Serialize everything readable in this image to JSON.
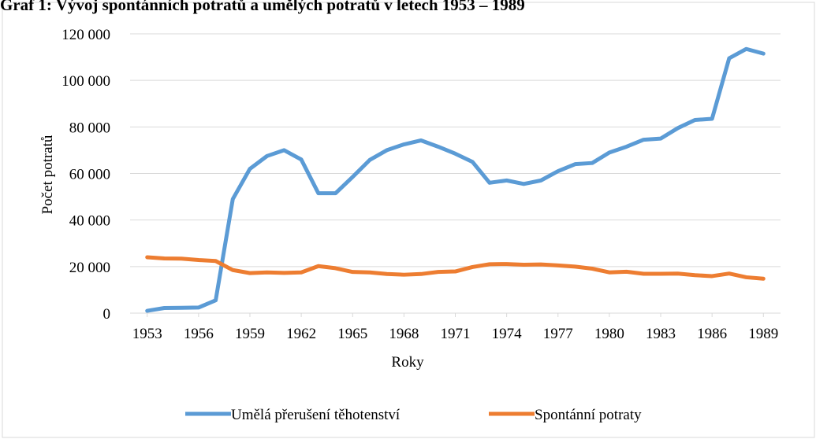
{
  "chart_data": {
    "type": "line",
    "title": "Graf 1: Vývoj spontánních potratů a umělých potratů v letech 1953 – 1989",
    "x_label": "Roky",
    "y_label": "Počet potratů",
    "x": [
      1953,
      1954,
      1955,
      1956,
      1957,
      1958,
      1959,
      1960,
      1961,
      1962,
      1963,
      1964,
      1965,
      1966,
      1967,
      1968,
      1969,
      1970,
      1971,
      1972,
      1973,
      1974,
      1975,
      1976,
      1977,
      1978,
      1979,
      1980,
      1981,
      1982,
      1983,
      1984,
      1985,
      1986,
      1987,
      1988,
      1989
    ],
    "series": [
      {
        "name": "Umělá přerušení těhotenství",
        "color": "#5b9bd5",
        "values": [
          1000,
          2200,
          2300,
          2400,
          5500,
          49000,
          62000,
          67500,
          70000,
          66000,
          51500,
          51500,
          58500,
          65800,
          70000,
          72500,
          74200,
          71500,
          68500,
          65000,
          56000,
          57000,
          55500,
          57000,
          61000,
          64000,
          64500,
          69000,
          71500,
          74500,
          75000,
          79500,
          83000,
          83500,
          109500,
          113500,
          111500
        ]
      },
      {
        "name": "Spontánní potraty",
        "color": "#ed7d31",
        "values": [
          24000,
          23500,
          23400,
          22800,
          22400,
          18500,
          17200,
          17500,
          17300,
          17500,
          20200,
          19300,
          17700,
          17500,
          16800,
          16500,
          16800,
          17700,
          17900,
          19800,
          21000,
          21100,
          20800,
          20900,
          20500,
          20000,
          19100,
          17500,
          17800,
          16900,
          16900,
          17000,
          16300,
          15900,
          17000,
          15400,
          14800
        ]
      }
    ],
    "xlim": [
      1952,
      1990
    ],
    "xticks": [
      1953,
      1956,
      1959,
      1962,
      1965,
      1968,
      1971,
      1974,
      1977,
      1980,
      1983,
      1986,
      1989
    ],
    "ylim": [
      0,
      120000
    ],
    "yticks": [
      0,
      {
        "value": 20000,
        "label": "20 000"
      },
      {
        "value": 40000,
        "label": "40 000"
      },
      {
        "value": 60000,
        "label": "60 000"
      },
      {
        "value": 80000,
        "label": "80 000"
      },
      {
        "value": 100000,
        "label": "100 000"
      },
      {
        "value": 120000,
        "label": "120 000"
      }
    ],
    "grid": true,
    "legend": "bottom"
  }
}
